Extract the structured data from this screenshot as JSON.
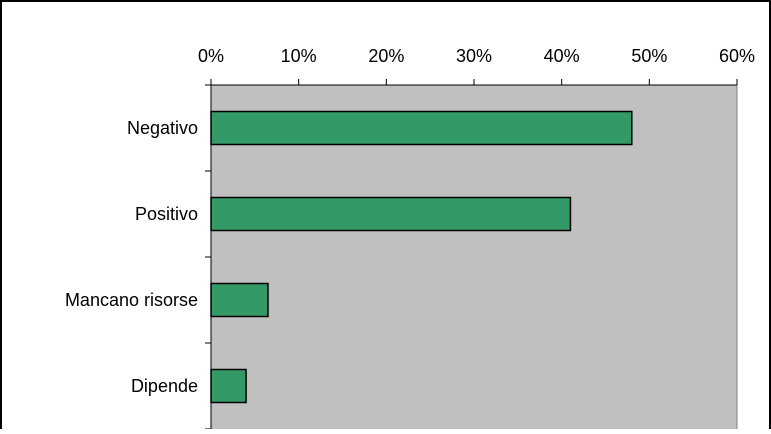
{
  "chart_data": {
    "type": "bar",
    "orientation": "horizontal",
    "categories": [
      "Negativo",
      "Positivo",
      "Mancano risorse",
      "Dipende"
    ],
    "values": [
      0.48,
      0.41,
      0.065,
      0.04
    ],
    "xlim": [
      0,
      0.6
    ],
    "ticks": [
      "0%",
      "10%",
      "20%",
      "30%",
      "40%",
      "50%",
      "60%"
    ],
    "tick_values": [
      0,
      0.1,
      0.2,
      0.3,
      0.4,
      0.5,
      0.6
    ],
    "axis_position": "top",
    "grid": false,
    "legend": false,
    "colors": {
      "bar": "#339966",
      "bar_border": "#000000",
      "plot_background": "#c0c0c0",
      "axis": "#000000"
    }
  }
}
